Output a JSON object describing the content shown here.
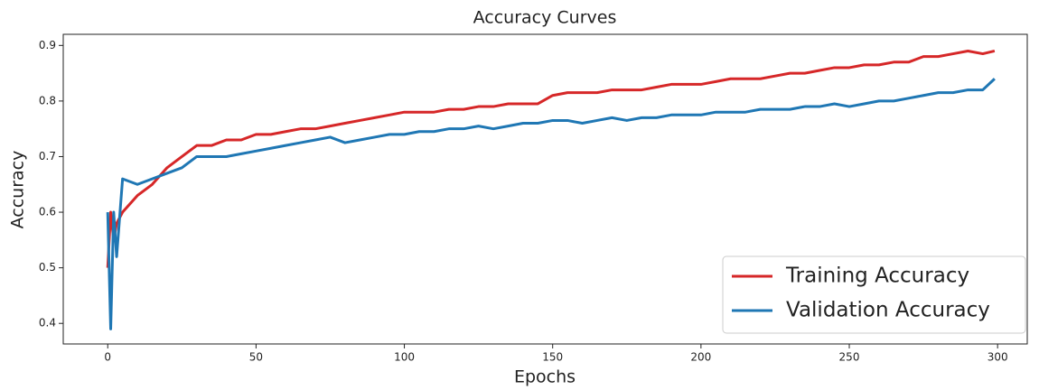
{
  "chart_data": {
    "type": "line",
    "title": "Accuracy Curves",
    "x_label": "Epochs",
    "y_label": "Accuracy",
    "x": [
      0,
      1,
      2,
      3,
      5,
      10,
      15,
      20,
      25,
      30,
      35,
      40,
      45,
      50,
      55,
      60,
      65,
      70,
      75,
      80,
      85,
      90,
      95,
      100,
      105,
      110,
      115,
      120,
      125,
      130,
      135,
      140,
      145,
      150,
      155,
      160,
      165,
      170,
      175,
      180,
      185,
      190,
      195,
      200,
      205,
      210,
      215,
      220,
      225,
      230,
      235,
      240,
      245,
      250,
      255,
      260,
      265,
      270,
      275,
      280,
      285,
      290,
      295,
      299
    ],
    "series": [
      {
        "name": "Training Accuracy",
        "color": "#d62728",
        "values": [
          0.5,
          0.6,
          0.55,
          0.58,
          0.6,
          0.63,
          0.65,
          0.68,
          0.7,
          0.72,
          0.72,
          0.73,
          0.73,
          0.74,
          0.74,
          0.745,
          0.75,
          0.75,
          0.755,
          0.76,
          0.765,
          0.77,
          0.775,
          0.78,
          0.78,
          0.78,
          0.785,
          0.785,
          0.79,
          0.79,
          0.795,
          0.795,
          0.795,
          0.81,
          0.815,
          0.815,
          0.815,
          0.82,
          0.82,
          0.82,
          0.825,
          0.83,
          0.83,
          0.83,
          0.835,
          0.84,
          0.84,
          0.84,
          0.845,
          0.85,
          0.85,
          0.855,
          0.86,
          0.86,
          0.865,
          0.865,
          0.87,
          0.87,
          0.88,
          0.88,
          0.885,
          0.89,
          0.885,
          0.89
        ]
      },
      {
        "name": "Validation Accuracy",
        "color": "#1f77b4",
        "values": [
          0.6,
          0.39,
          0.6,
          0.52,
          0.66,
          0.65,
          0.66,
          0.67,
          0.68,
          0.7,
          0.7,
          0.7,
          0.705,
          0.71,
          0.715,
          0.72,
          0.725,
          0.73,
          0.735,
          0.725,
          0.73,
          0.735,
          0.74,
          0.74,
          0.745,
          0.745,
          0.75,
          0.75,
          0.755,
          0.75,
          0.755,
          0.76,
          0.76,
          0.765,
          0.765,
          0.76,
          0.765,
          0.77,
          0.765,
          0.77,
          0.77,
          0.775,
          0.775,
          0.775,
          0.78,
          0.78,
          0.78,
          0.785,
          0.785,
          0.785,
          0.79,
          0.79,
          0.795,
          0.79,
          0.795,
          0.8,
          0.8,
          0.805,
          0.81,
          0.815,
          0.815,
          0.82,
          0.82,
          0.84
        ]
      }
    ],
    "xlim": [
      -15,
      310
    ],
    "ylim": [
      0.363,
      0.92
    ],
    "xticks": [
      0,
      50,
      100,
      150,
      200,
      250,
      300
    ],
    "yticks": [
      0.4,
      0.5,
      0.6,
      0.7,
      0.8,
      0.9
    ],
    "legend": "lower right"
  }
}
